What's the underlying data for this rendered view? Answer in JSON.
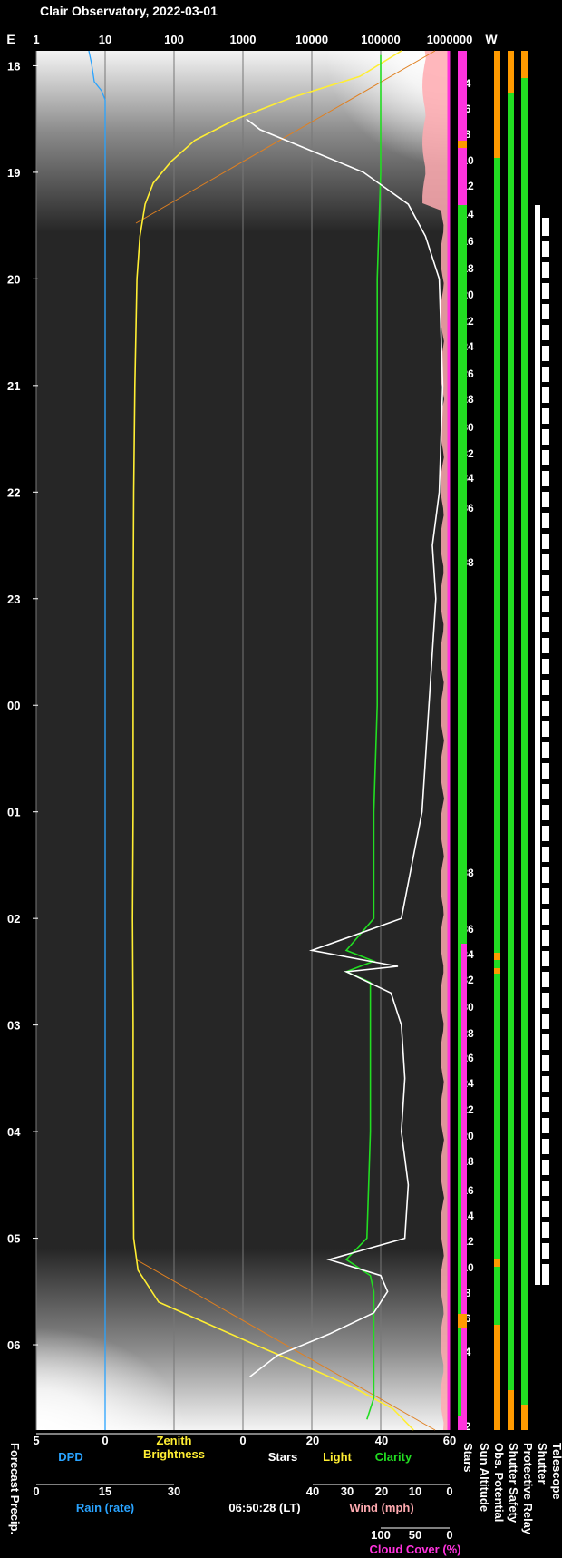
{
  "title": "Clair Observatory, 2022-03-01",
  "timestamp": "06:50:28 (LT)",
  "chart_data": {
    "type": "line",
    "title": "Clair Observatory, 2022-03-01",
    "compass": {
      "left": "E",
      "right": "W"
    },
    "top_axis": {
      "label": "",
      "scale": "log",
      "ticks": [
        "1",
        "10",
        "100",
        "1000",
        "10000",
        "100000",
        "1000000"
      ],
      "values": [
        1,
        10,
        100,
        1000,
        10000,
        100000,
        1000000
      ]
    },
    "time_ticks": [
      "18",
      "19",
      "20",
      "21",
      "22",
      "23",
      "00",
      "01",
      "02",
      "03",
      "04",
      "05",
      "06"
    ],
    "time_range_hours": [
      17.86,
      30.8
    ],
    "sun_altitude_ticks": {
      "evening": [
        "-4",
        "-6",
        "-8",
        "-10",
        "-12",
        "-14",
        "-16",
        "-18",
        "-20",
        "-22",
        "-24",
        "-26",
        "-28",
        "-30",
        "-32",
        "-34",
        "-36",
        "-38"
      ],
      "morning": [
        "-38",
        "-36",
        "-34",
        "-32",
        "-30",
        "-28",
        "-26",
        "-24",
        "-22",
        "-20",
        "-18",
        "-16",
        "-14",
        "-12",
        "-10",
        "-8",
        "-6",
        "-4",
        "-2"
      ]
    },
    "bottom_axes": {
      "dpd": {
        "label": "DPD",
        "ticks": [
          "5",
          "0"
        ],
        "color": "#29a3ff"
      },
      "zenith": {
        "label": "Zenith Brightness",
        "ticks": [
          "0"
        ],
        "color": "#ffee33"
      },
      "stars_light_clarity": {
        "ticks": [
          "0",
          "20",
          "40",
          "60"
        ],
        "stars_label": "Stars",
        "light_label": "Light",
        "clarity_label": "Clarity",
        "stars_color": "#ffffff",
        "light_color": "#ffee33",
        "clarity_color": "#22dd22"
      },
      "rain": {
        "label": "Rain (rate)",
        "ticks": [
          "0",
          "15",
          "30"
        ],
        "color": "#29a3ff"
      },
      "wind": {
        "label": "Wind (mph)",
        "ticks": [
          "40",
          "30",
          "20",
          "10",
          "0"
        ],
        "color": "#ffaab0"
      },
      "cloud": {
        "label": "Cloud Cover (%)",
        "ticks": [
          "100",
          "50",
          "0"
        ],
        "color": "#ff33dd"
      }
    },
    "side_labels": [
      "Forecast Precip.",
      "Stars",
      "Sun Altitude",
      "Obs. Potential",
      "Shutter Safety",
      "Protective Relay",
      "Shutter",
      "Telescope"
    ],
    "series": [
      {
        "name": "Zenith Brightness",
        "color": "#ffee33",
        "points": [
          [
            17.86,
            200000
          ],
          [
            18.1,
            50000
          ],
          [
            18.3,
            5000
          ],
          [
            18.5,
            800
          ],
          [
            18.7,
            200
          ],
          [
            18.9,
            90
          ],
          [
            19.1,
            50
          ],
          [
            19.3,
            38
          ],
          [
            19.6,
            32
          ],
          [
            20,
            29
          ],
          [
            21,
            27
          ],
          [
            22,
            26
          ],
          [
            23,
            25.5
          ],
          [
            0,
            25.5
          ],
          [
            1,
            25.5
          ],
          [
            2,
            25
          ],
          [
            3,
            25.5
          ],
          [
            4,
            25.5
          ],
          [
            5,
            26
          ],
          [
            5.3,
            30
          ],
          [
            5.6,
            60
          ],
          [
            5.8,
            300
          ],
          [
            6,
            1500
          ],
          [
            6.2,
            8000
          ],
          [
            6.4,
            40000
          ],
          [
            6.6,
            150000
          ],
          [
            6.8,
            300000
          ]
        ]
      },
      {
        "name": "Clarity",
        "color": "#22dd22",
        "points": [
          [
            17.9,
            40
          ],
          [
            18.5,
            40
          ],
          [
            19,
            40
          ],
          [
            20,
            39
          ],
          [
            21,
            39
          ],
          [
            22,
            39
          ],
          [
            23,
            39
          ],
          [
            0,
            39
          ],
          [
            1,
            38
          ],
          [
            2,
            38
          ],
          [
            2.3,
            30
          ],
          [
            2.4,
            38
          ],
          [
            2.5,
            30
          ],
          [
            2.6,
            37
          ],
          [
            3,
            37
          ],
          [
            4,
            37
          ],
          [
            5,
            36
          ],
          [
            5.2,
            30
          ],
          [
            5.35,
            37
          ],
          [
            5.5,
            38
          ],
          [
            6,
            38
          ],
          [
            6.5,
            38
          ],
          [
            6.7,
            36
          ]
        ]
      },
      {
        "name": "Stars",
        "color": "#ffffff",
        "points": [
          [
            18.5,
            1
          ],
          [
            18.6,
            5
          ],
          [
            18.8,
            20
          ],
          [
            19,
            35
          ],
          [
            19.3,
            48
          ],
          [
            19.6,
            53
          ],
          [
            20,
            57
          ],
          [
            21,
            58
          ],
          [
            22,
            57
          ],
          [
            22.5,
            55
          ],
          [
            23,
            56
          ],
          [
            0,
            54
          ],
          [
            0.5,
            53
          ],
          [
            1,
            52
          ],
          [
            1.5,
            49
          ],
          [
            2,
            46
          ],
          [
            2.3,
            20
          ],
          [
            2.45,
            45
          ],
          [
            2.5,
            30
          ],
          [
            2.7,
            43
          ],
          [
            3,
            46
          ],
          [
            3.5,
            47
          ],
          [
            4,
            46
          ],
          [
            4.5,
            48
          ],
          [
            5,
            47
          ],
          [
            5.2,
            25
          ],
          [
            5.35,
            40
          ],
          [
            5.5,
            42
          ],
          [
            5.7,
            38
          ],
          [
            5.9,
            25
          ],
          [
            6.1,
            10
          ],
          [
            6.3,
            2
          ]
        ]
      }
    ]
  }
}
